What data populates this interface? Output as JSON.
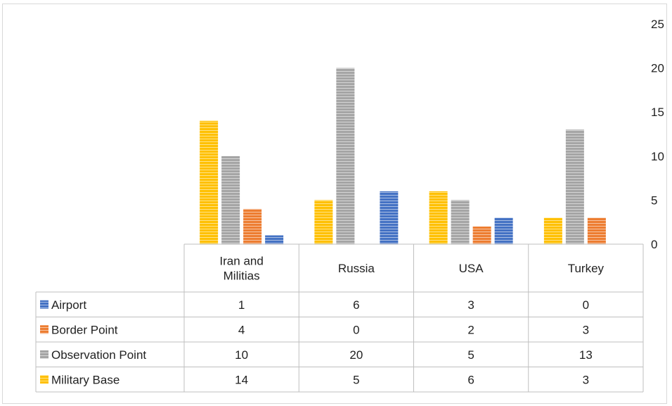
{
  "chart_data": {
    "type": "bar",
    "title": "",
    "xlabel": "",
    "ylabel": "",
    "categories": [
      "Iran and Militias",
      "Russia",
      "USA",
      "Turkey"
    ],
    "category_lines": [
      [
        "Iran and",
        "Militias"
      ],
      [
        "Russia"
      ],
      [
        "USA"
      ],
      [
        "Turkey"
      ]
    ],
    "ylim": [
      0,
      25
    ],
    "yticks": [
      0,
      5,
      10,
      15,
      20,
      25
    ],
    "y_axis_position": "right",
    "grid": false,
    "legend": "data-table",
    "bar_series_order": [
      "Military Base",
      "Observation Point",
      "Border Point",
      "Airport"
    ],
    "series": [
      {
        "name": "Airport",
        "values": [
          1,
          6,
          3,
          0
        ],
        "color": "#4472c4"
      },
      {
        "name": "Border Point",
        "values": [
          4,
          0,
          2,
          3
        ],
        "color": "#ed7d31"
      },
      {
        "name": "Observation Point",
        "values": [
          10,
          20,
          5,
          13
        ],
        "color": "#a5a5a5"
      },
      {
        "name": "Military Base",
        "values": [
          14,
          5,
          6,
          3
        ],
        "color": "#ffc000"
      }
    ]
  }
}
